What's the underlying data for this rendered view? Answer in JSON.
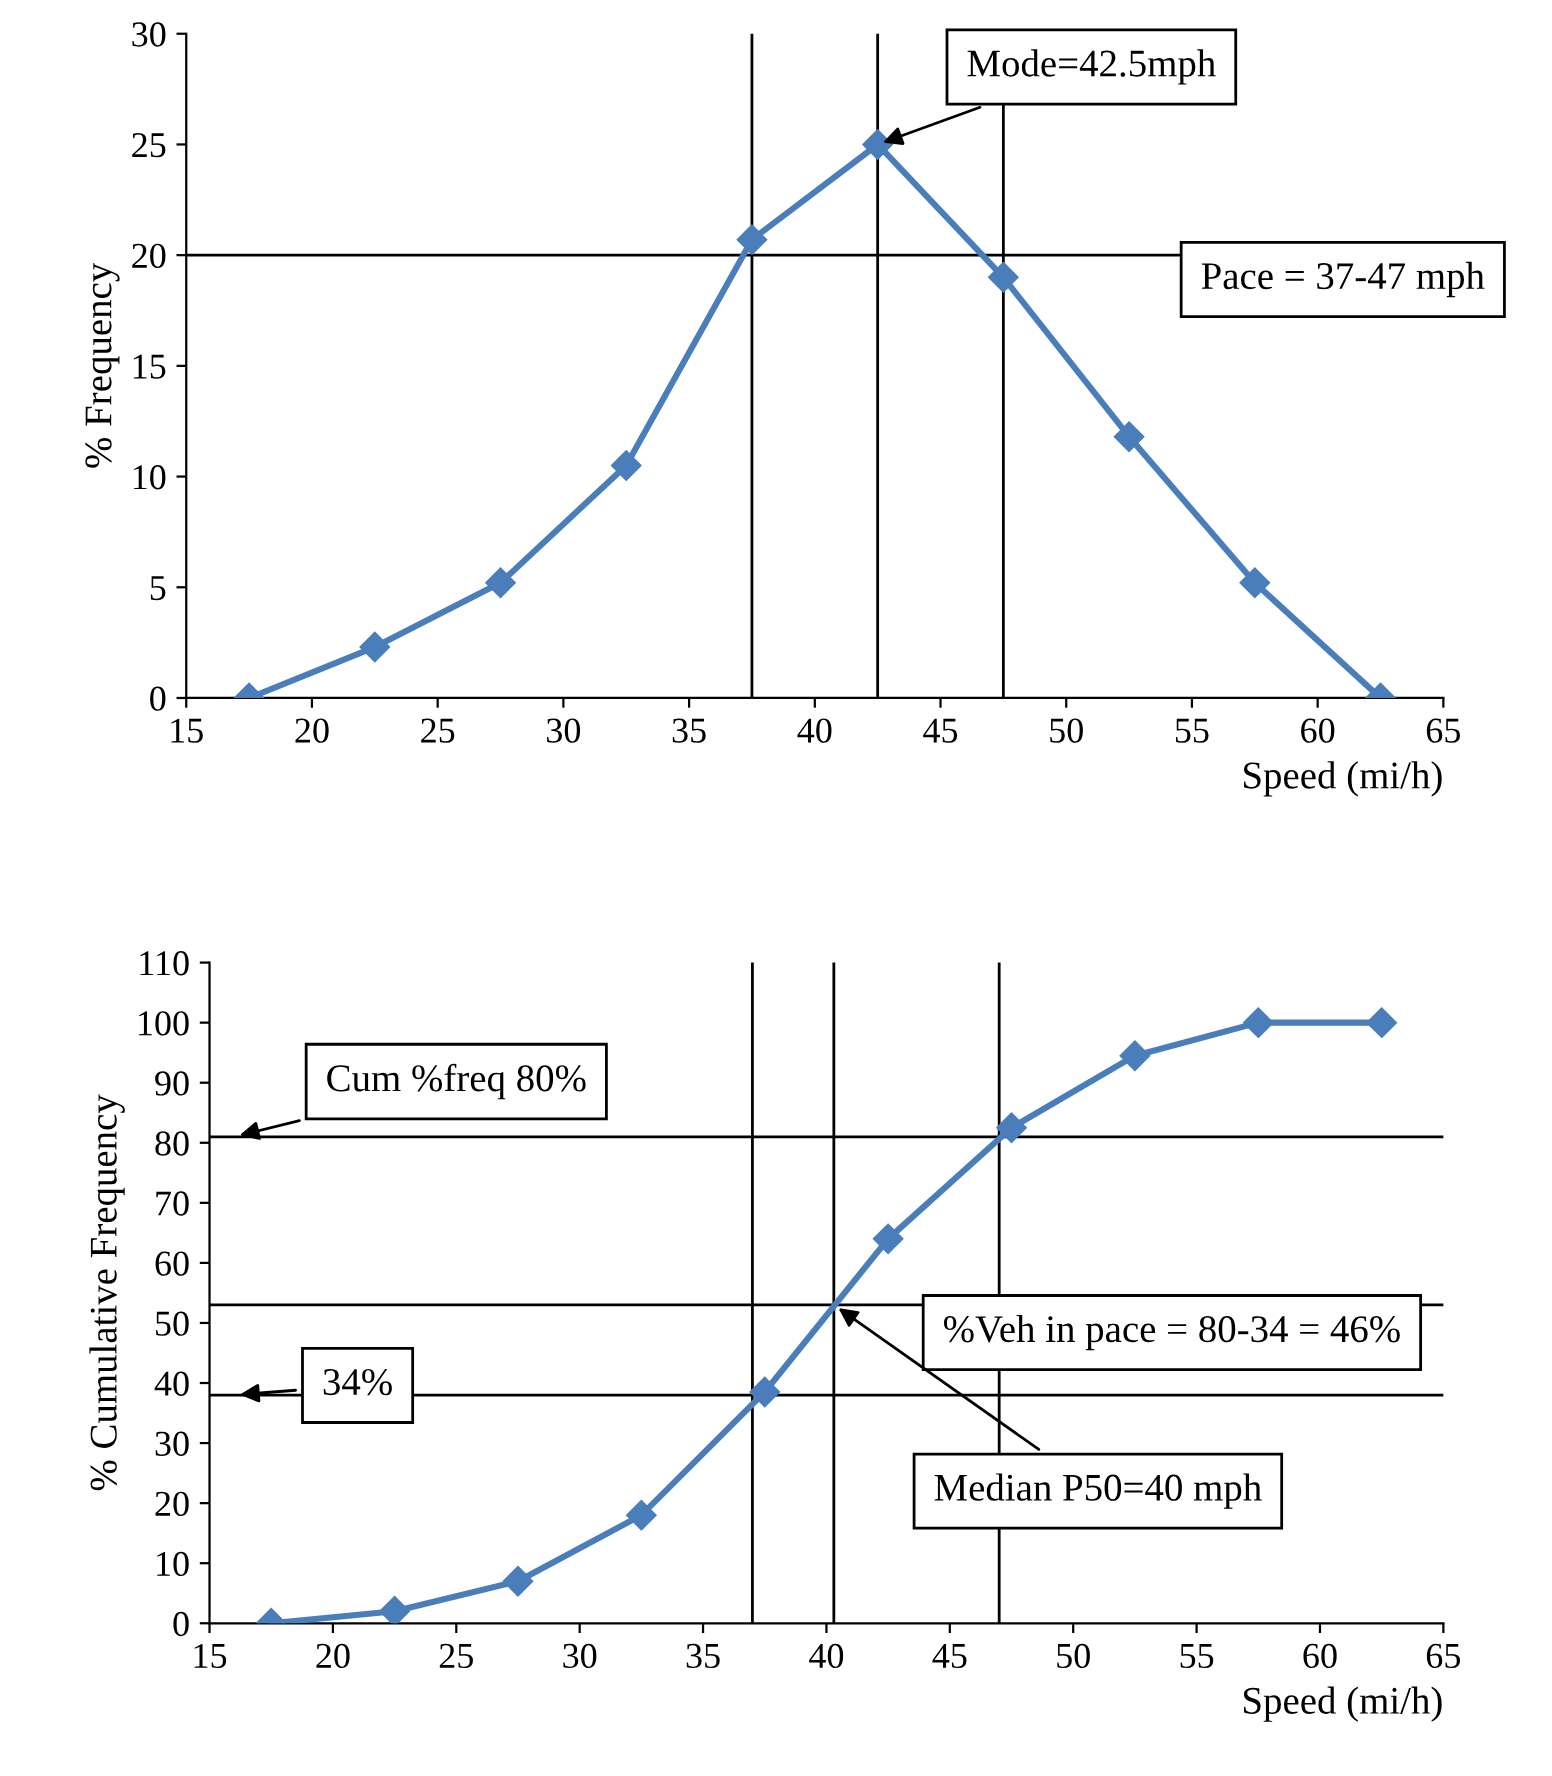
{
  "chart_data": [
    {
      "type": "line",
      "ylabel": "% Frequency",
      "xlabel": "Speed (mi/h)",
      "x": [
        17.5,
        22.5,
        27.5,
        32.5,
        37.5,
        42.5,
        47.5,
        52.5,
        57.5,
        62.5
      ],
      "series": [
        {
          "color": "#4a7ebb",
          "values": [
            0,
            2.3,
            5.2,
            10.5,
            20.7,
            25,
            19,
            11.8,
            5.2,
            0
          ]
        }
      ],
      "xlim": [
        15,
        65
      ],
      "xticks": [
        15,
        20,
        25,
        30,
        35,
        40,
        45,
        50,
        55,
        60,
        65
      ],
      "ylim": [
        0,
        30
      ],
      "yticks": [
        0,
        5,
        10,
        15,
        20,
        25,
        30
      ],
      "marker": "diamond",
      "line_style": "solid",
      "grid": false,
      "legend": false,
      "ref_lines": [
        {
          "axis": "x",
          "value": 37.5,
          "color": "#000000"
        },
        {
          "axis": "x",
          "value": 47.5,
          "color": "#000000"
        },
        {
          "axis": "y",
          "value": 20,
          "color": "#000000"
        },
        {
          "axis": "x",
          "value": 42.5,
          "color": "#000000"
        }
      ],
      "annotations": [
        {
          "text": "Mode=42.5mph",
          "x": 42.5,
          "y": 25
        },
        "Pace = 37-47 mph"
      ]
    },
    {
      "type": "line",
      "ylabel": "% Cumulative Frequency",
      "xlabel": "Speed (mi/h)",
      "x": [
        17.5,
        22.5,
        27.5,
        32.5,
        37.5,
        42.5,
        47.5,
        52.5,
        57.5,
        62.5
      ],
      "series": [
        {
          "color": "#4a7ebb",
          "values": [
            0,
            2,
            7,
            18,
            38.5,
            64,
            82.5,
            94.5,
            100,
            100
          ]
        }
      ],
      "xlim": [
        15,
        65
      ],
      "xticks": [
        15,
        20,
        25,
        30,
        35,
        40,
        45,
        50,
        55,
        60,
        65
      ],
      "ylim": [
        0,
        110
      ],
      "yticks": [
        0,
        10,
        20,
        30,
        40,
        50,
        60,
        70,
        80,
        90,
        100,
        110
      ],
      "marker": "diamond",
      "line_style": "solid",
      "grid": false,
      "legend": false,
      "ref_lines": [
        {
          "axis": "x",
          "value": 37,
          "color": "#000000"
        },
        {
          "axis": "x",
          "value": 47,
          "color": "#000000"
        },
        {
          "axis": "y",
          "value": 81,
          "color": "#000000"
        },
        {
          "axis": "y",
          "value": 38,
          "color": "#000000"
        },
        {
          "axis": "y",
          "value": 53,
          "color": "#000000"
        },
        {
          "axis": "x",
          "value": 40.3,
          "color": "#000000"
        }
      ],
      "annotations": [
        {
          "text": "Cum %freq 80%",
          "x": 16,
          "y": 81
        },
        {
          "text": "34%",
          "x": 16,
          "y": 38
        },
        "%Veh in pace = 80-34 = 46%",
        {
          "text": "Median P50=40 mph",
          "x": 40.3,
          "y": 53
        }
      ]
    }
  ]
}
